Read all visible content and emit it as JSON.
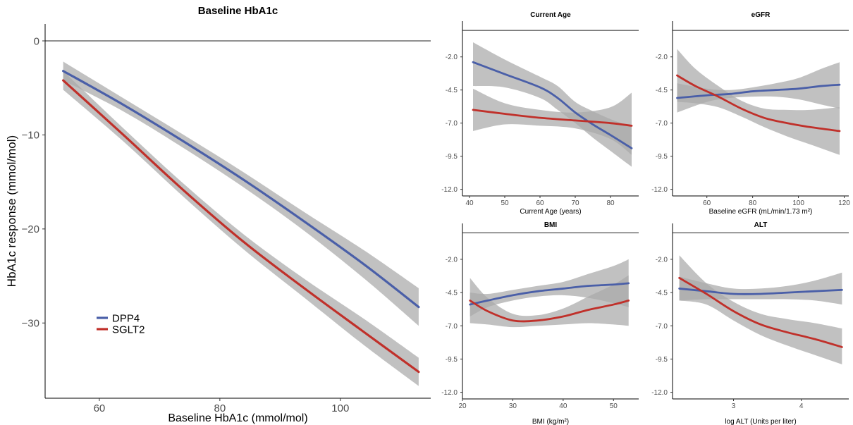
{
  "colors": {
    "DPP4": "#4a5fa8",
    "SGLT2": "#c0302a",
    "ribbon": "#a9a9a9"
  },
  "legend": {
    "position": "bottom-left of main panel",
    "items": [
      "DPP4",
      "SGLT2"
    ]
  },
  "chart_data": [
    {
      "type": "line",
      "title": "Baseline HbA1c",
      "xlabel": "Baseline HbA1c (mmol/mol)",
      "ylabel": "HbA1c response (mmol/mol)",
      "xlim": [
        51,
        115
      ],
      "ylim": [
        -38,
        1.8
      ],
      "xticks": [
        60,
        80,
        100
      ],
      "yticks": [
        0,
        -10,
        -20,
        -30
      ],
      "ytick_labels": [
        "0",
        "−10",
        "−20",
        "−30"
      ],
      "reference_line": 0,
      "series": [
        {
          "name": "DPP4",
          "x": [
            54,
            64,
            74,
            84,
            94,
            104,
            113
          ],
          "y": [
            -3.2,
            -6.8,
            -10.7,
            -14.8,
            -19.2,
            -23.8,
            -28.3
          ],
          "lower": [
            -4.2,
            -7.5,
            -11.4,
            -15.6,
            -20.2,
            -25.3,
            -30.3
          ],
          "upper": [
            -2.2,
            -6.1,
            -10.0,
            -14.0,
            -18.2,
            -22.3,
            -26.3
          ]
        },
        {
          "name": "SGLT2",
          "x": [
            54,
            64,
            74,
            84,
            94,
            104,
            113
          ],
          "y": [
            -4.2,
            -10.0,
            -15.9,
            -21.4,
            -26.3,
            -31.0,
            -35.2
          ],
          "lower": [
            -5.2,
            -10.7,
            -16.6,
            -22.2,
            -27.3,
            -32.4,
            -36.7
          ],
          "upper": [
            -3.2,
            -9.3,
            -15.2,
            -20.6,
            -25.3,
            -29.6,
            -33.7
          ]
        }
      ]
    },
    {
      "type": "line",
      "title": "Current Age",
      "xlabel": "Current Age (years)",
      "ylabel": "",
      "xlim": [
        38,
        88
      ],
      "ylim": [
        -12.5,
        0.7
      ],
      "xticks": [
        40,
        50,
        60,
        70,
        80
      ],
      "yticks": [
        -2.0,
        -4.5,
        -7.0,
        -9.5,
        -12.0
      ],
      "reference_line": 0,
      "series": [
        {
          "name": "DPP4",
          "x": [
            41,
            50,
            60,
            65,
            70,
            75,
            80,
            86
          ],
          "y": [
            -2.4,
            -3.3,
            -4.3,
            -5.1,
            -6.2,
            -7.1,
            -7.9,
            -8.9
          ],
          "lower": [
            -4.2,
            -4.3,
            -5.1,
            -6.0,
            -7.0,
            -8.1,
            -9.1,
            -10.3
          ],
          "upper": [
            -0.9,
            -2.2,
            -3.5,
            -4.2,
            -5.4,
            -6.1,
            -6.7,
            -7.3
          ]
        },
        {
          "name": "SGLT2",
          "x": [
            41,
            50,
            60,
            70,
            80,
            86
          ],
          "y": [
            -6.0,
            -6.3,
            -6.6,
            -6.8,
            -7.0,
            -7.2
          ],
          "lower": [
            -7.6,
            -7.1,
            -7.2,
            -7.4,
            -8.2,
            -9.4
          ],
          "upper": [
            -4.4,
            -5.5,
            -6.0,
            -6.2,
            -5.8,
            -4.7
          ]
        }
      ]
    },
    {
      "type": "line",
      "title": "eGFR",
      "xlabel": "Baseline eGFR (mL/min/1.73 m²)",
      "ylabel": "",
      "xlim": [
        45,
        122
      ],
      "ylim": [
        -12.5,
        0.7
      ],
      "xticks": [
        60,
        80,
        100,
        120
      ],
      "yticks": [
        -2.0,
        -4.5,
        -7.0,
        -9.5,
        -12.0
      ],
      "reference_line": 0,
      "series": [
        {
          "name": "DPP4",
          "x": [
            47,
            60,
            70,
            80,
            90,
            100,
            110,
            118
          ],
          "y": [
            -5.1,
            -4.9,
            -4.8,
            -4.6,
            -4.5,
            -4.4,
            -4.2,
            -4.1
          ],
          "lower": [
            -6.2,
            -5.4,
            -5.1,
            -5.0,
            -5.0,
            -5.2,
            -5.6,
            -5.9
          ],
          "upper": [
            -4.0,
            -4.4,
            -4.5,
            -4.3,
            -4.0,
            -3.6,
            -2.9,
            -2.4
          ]
        },
        {
          "name": "SGLT2",
          "x": [
            47,
            55,
            65,
            75,
            85,
            95,
            105,
            118
          ],
          "y": [
            -3.4,
            -4.2,
            -5.0,
            -5.9,
            -6.6,
            -7.0,
            -7.3,
            -7.6
          ],
          "lower": [
            -5.4,
            -5.5,
            -5.8,
            -6.5,
            -7.3,
            -8.0,
            -8.6,
            -9.4
          ],
          "upper": [
            -1.4,
            -2.9,
            -4.2,
            -5.3,
            -5.9,
            -6.0,
            -6.0,
            -5.8
          ]
        }
      ]
    },
    {
      "type": "line",
      "title": "BMI",
      "xlabel": "BMI (kg/m²)",
      "ylabel": "",
      "xlim": [
        20,
        55
      ],
      "ylim": [
        -12.5,
        0.7
      ],
      "xticks": [
        20,
        30,
        40,
        50
      ],
      "yticks": [
        -2.0,
        -4.5,
        -7.0,
        -9.5,
        -12.0
      ],
      "reference_line": 0,
      "series": [
        {
          "name": "DPP4",
          "x": [
            21.5,
            25,
            30,
            35,
            40,
            45,
            50,
            53
          ],
          "y": [
            -5.4,
            -5.1,
            -4.7,
            -4.4,
            -4.2,
            -4.0,
            -3.9,
            -3.8
          ],
          "lower": [
            -6.3,
            -5.6,
            -5.1,
            -4.8,
            -4.7,
            -4.9,
            -5.3,
            -5.6
          ],
          "upper": [
            -4.5,
            -4.6,
            -4.3,
            -4.0,
            -3.7,
            -3.1,
            -2.5,
            -2.0
          ]
        },
        {
          "name": "SGLT2",
          "x": [
            21.5,
            25,
            30,
            35,
            40,
            45,
            50,
            53
          ],
          "y": [
            -5.1,
            -5.9,
            -6.6,
            -6.6,
            -6.3,
            -5.8,
            -5.4,
            -5.1
          ],
          "lower": [
            -6.8,
            -6.9,
            -7.1,
            -7.0,
            -6.9,
            -6.8,
            -6.9,
            -7.0
          ],
          "upper": [
            -3.4,
            -4.9,
            -6.1,
            -6.2,
            -5.7,
            -4.8,
            -3.9,
            -3.2
          ]
        }
      ]
    },
    {
      "type": "line",
      "title": "ALT",
      "xlabel": "log ALT (Units per liter)",
      "ylabel": "",
      "xlim": [
        2.1,
        4.7
      ],
      "ylim": [
        -12.5,
        0.7
      ],
      "xticks": [
        3,
        4
      ],
      "yticks": [
        -2.0,
        -4.5,
        -7.0,
        -9.5,
        -12.0
      ],
      "reference_line": 0,
      "series": [
        {
          "name": "DPP4",
          "x": [
            2.2,
            2.6,
            3.0,
            3.4,
            3.8,
            4.2,
            4.6
          ],
          "y": [
            -4.2,
            -4.4,
            -4.6,
            -4.6,
            -4.5,
            -4.4,
            -4.3
          ],
          "lower": [
            -5.1,
            -5.0,
            -5.0,
            -5.0,
            -5.0,
            -5.1,
            -5.4
          ],
          "upper": [
            -3.3,
            -3.8,
            -4.2,
            -4.2,
            -4.0,
            -3.6,
            -3.0
          ]
        },
        {
          "name": "SGLT2",
          "x": [
            2.2,
            2.6,
            3.0,
            3.4,
            3.8,
            4.2,
            4.6
          ],
          "y": [
            -3.4,
            -4.6,
            -5.9,
            -6.9,
            -7.5,
            -8.0,
            -8.6
          ],
          "lower": [
            -5.1,
            -5.4,
            -6.6,
            -7.7,
            -8.5,
            -9.2,
            -9.9
          ],
          "upper": [
            -1.7,
            -3.8,
            -5.2,
            -6.1,
            -6.5,
            -6.8,
            -7.2
          ]
        }
      ]
    }
  ]
}
